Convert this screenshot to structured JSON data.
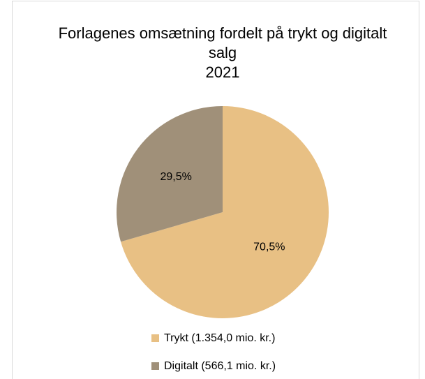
{
  "chart_data": {
    "type": "pie",
    "title": "Forlagenes omsætning fordelt på trykt og digitalt salg",
    "subtitle": "2021",
    "categories": [
      "Trykt (1.354,0 mio. kr.)",
      "Digitalt (566,1 mio. kr.)"
    ],
    "values": [
      70.5,
      29.5
    ],
    "value_labels": [
      "70,5%",
      "29,5%"
    ],
    "colors": [
      "#e8c084",
      "#a09079"
    ],
    "legend": "bottom"
  }
}
